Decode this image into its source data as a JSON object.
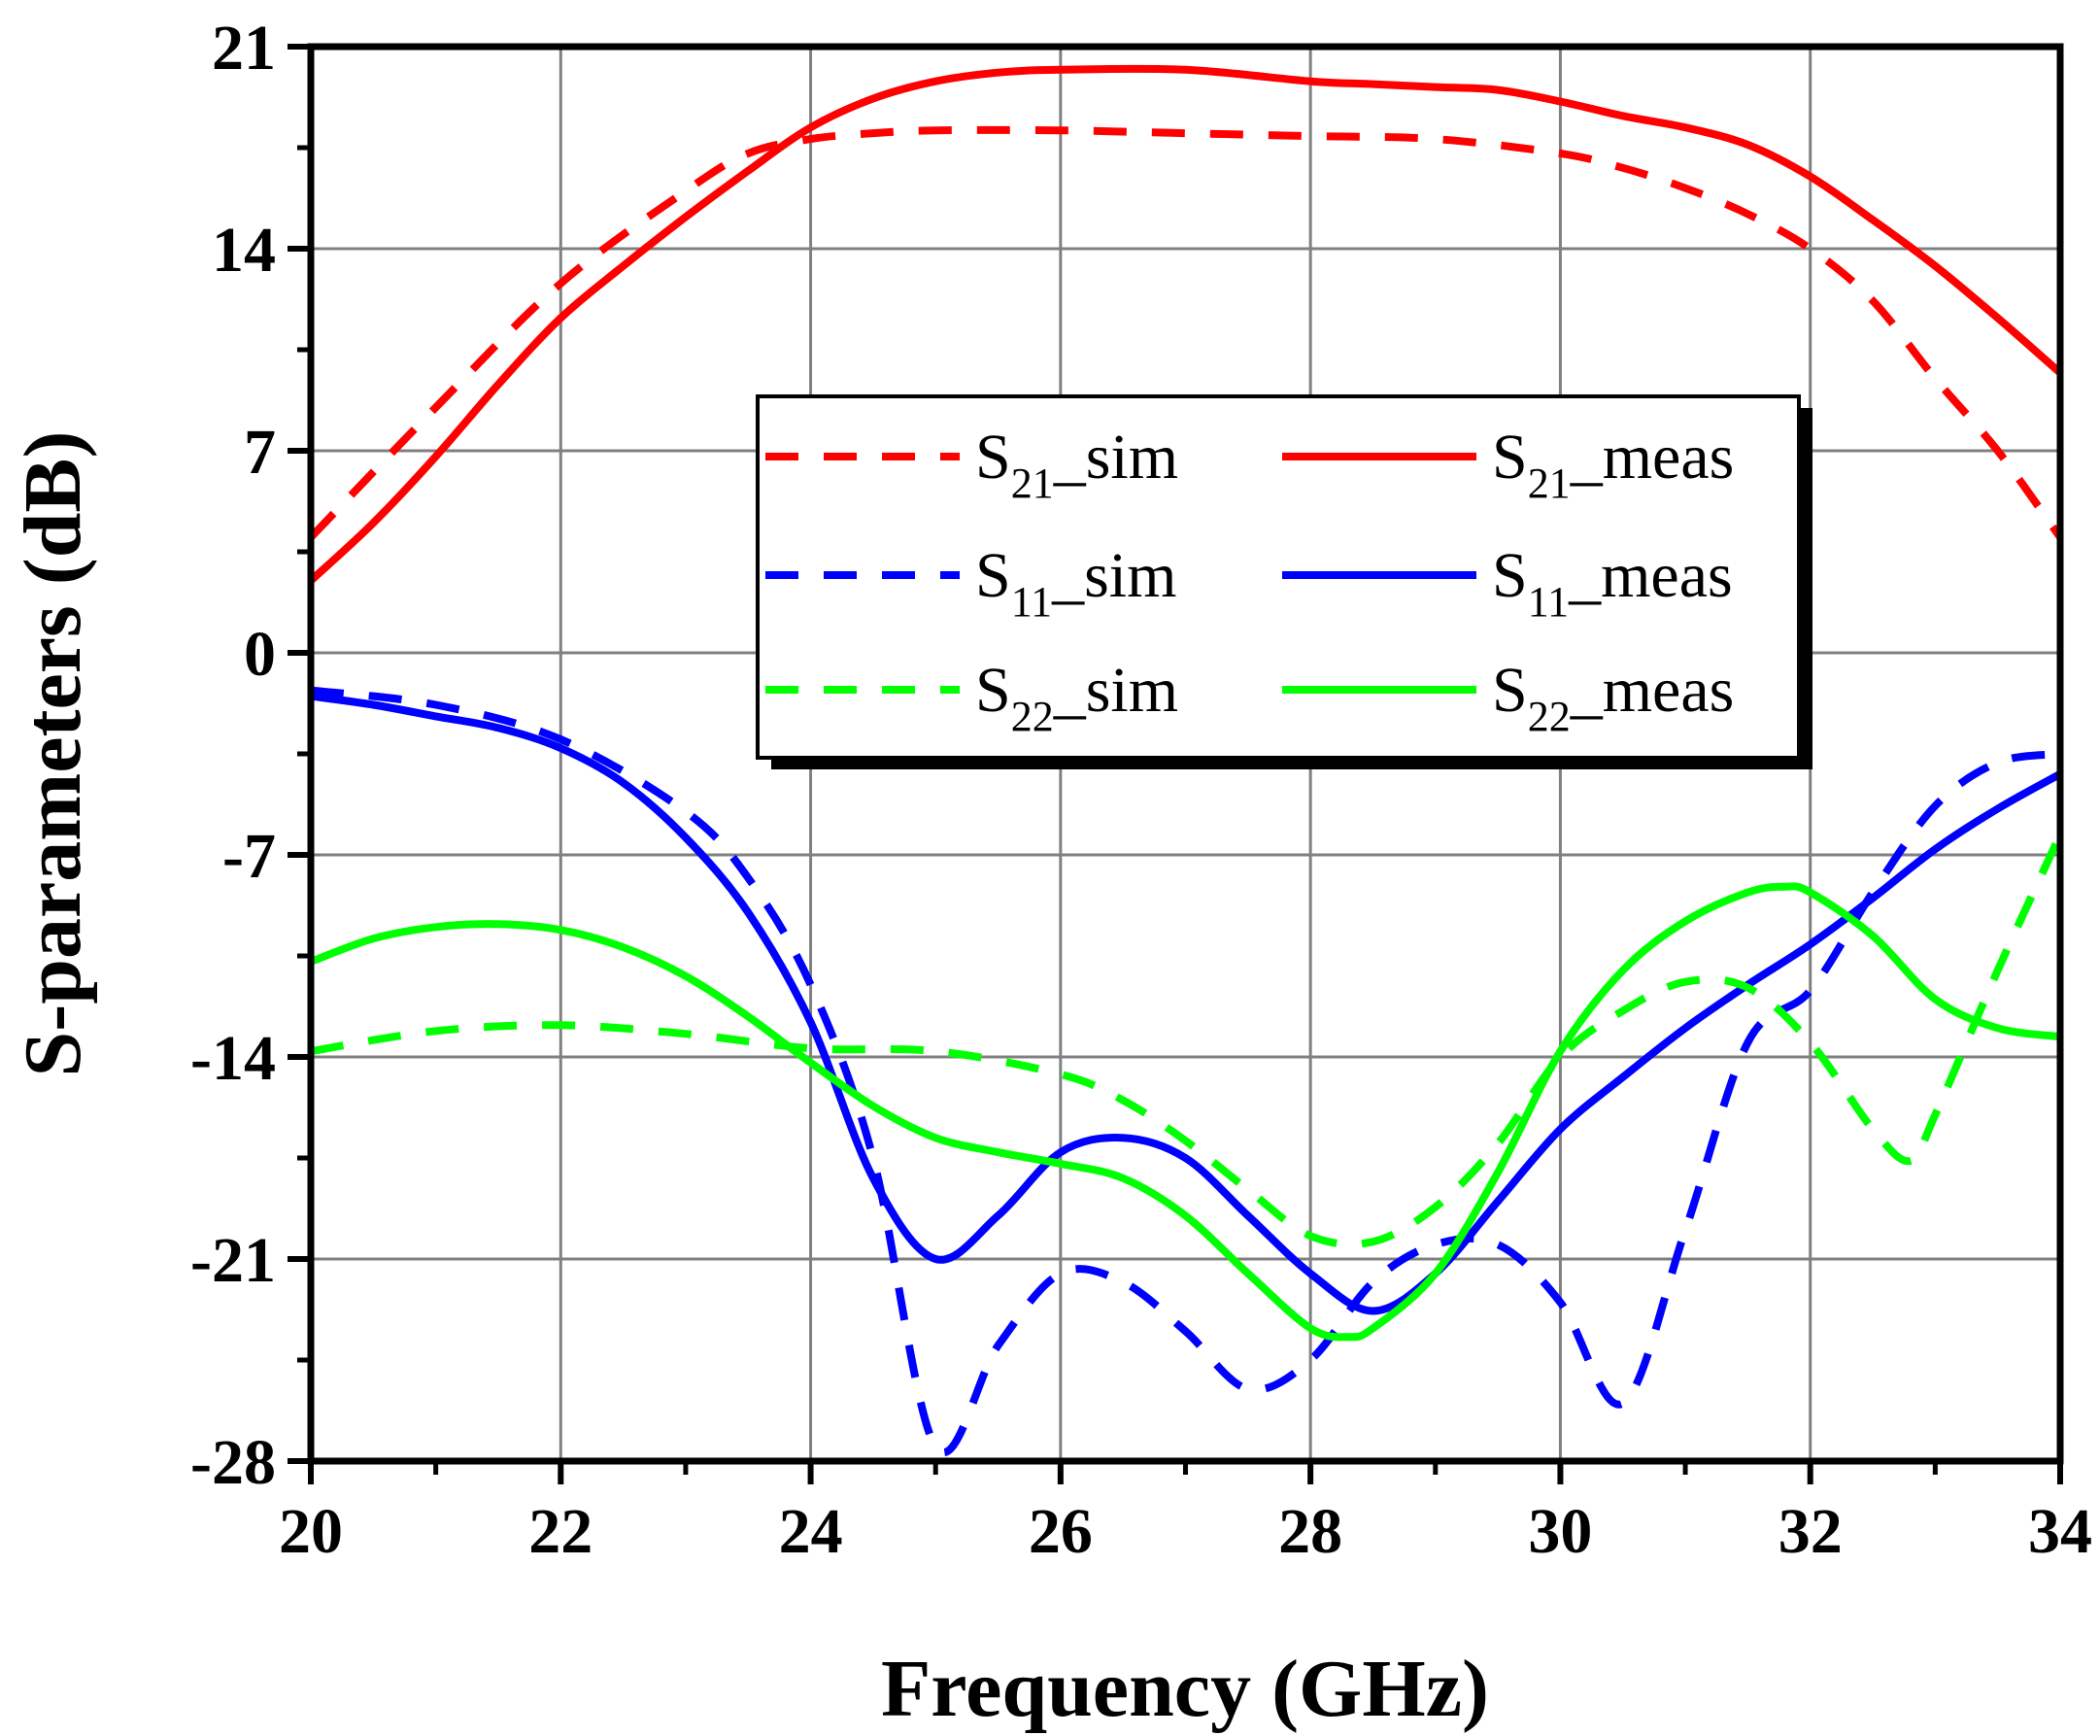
{
  "chart_data": {
    "type": "line",
    "title": "",
    "xlabel": "Frequency (GHz)",
    "ylabel": "S-parameters (dB)",
    "xlim": [
      20,
      34
    ],
    "ylim": [
      -28,
      21
    ],
    "xticks": [
      20,
      22,
      24,
      26,
      28,
      30,
      32,
      34
    ],
    "yticks": [
      -28,
      -21,
      -14,
      -7,
      0,
      7,
      14,
      21
    ],
    "xtick_labels": [
      "20",
      "22",
      "24",
      "26",
      "28",
      "30",
      "32",
      "34"
    ],
    "ytick_labels": [
      "-28",
      "-21",
      "-14",
      "-7",
      "0",
      "7",
      "14",
      "21"
    ],
    "grid": true,
    "legend_position": "center-top",
    "series": [
      {
        "name": "S21_sim",
        "label_main": "S",
        "label_sub": "21",
        "label_suffix": "_sim",
        "color": "#ff0000",
        "dash": true,
        "x": [
          20,
          21,
          22,
          23,
          23.5,
          24,
          24.5,
          25,
          26,
          27,
          28,
          29,
          30,
          30.5,
          31,
          31.5,
          32,
          32.5,
          33,
          33.5,
          34
        ],
        "y": [
          4,
          8.5,
          12.8,
          16,
          17.3,
          17.8,
          18,
          18.1,
          18.1,
          18.0,
          17.9,
          17.8,
          17.3,
          16.8,
          16.1,
          15.2,
          14,
          12.2,
          9.5,
          7,
          4
        ]
      },
      {
        "name": "S21_meas",
        "label_main": "S",
        "label_sub": "21",
        "label_suffix": "_meas",
        "color": "#ff0000",
        "dash": false,
        "x": [
          20,
          20.5,
          21,
          21.5,
          22,
          22.5,
          23,
          23.5,
          24,
          24.5,
          25,
          25.5,
          26,
          27,
          28,
          28.5,
          29,
          29.5,
          30,
          30.5,
          31,
          31.5,
          32,
          32.5,
          33,
          33.5,
          34
        ],
        "y": [
          2.5,
          4.5,
          6.8,
          9.3,
          11.6,
          13.4,
          15.1,
          16.7,
          18.2,
          19.2,
          19.8,
          20.1,
          20.2,
          20.2,
          19.8,
          19.7,
          19.6,
          19.5,
          19.1,
          18.6,
          18.2,
          17.6,
          16.5,
          15,
          13.4,
          11.6,
          9.7
        ]
      },
      {
        "name": "S11_sim",
        "label_main": "S",
        "label_sub": "11",
        "label_suffix": "_sim",
        "color": "#0000ff",
        "dash": true,
        "x": [
          20,
          21,
          22,
          23,
          23.5,
          24,
          24.5,
          25,
          25.5,
          26,
          26.5,
          27,
          27.5,
          28,
          28.5,
          29,
          29.5,
          30,
          30.5,
          31,
          31.5,
          32,
          32.5,
          33,
          33.5,
          34
        ],
        "y": [
          -1.3,
          -1.8,
          -3,
          -5.5,
          -7.8,
          -11.5,
          -17.5,
          -27.5,
          -24,
          -21.5,
          -21.8,
          -23.5,
          -25.5,
          -24.5,
          -21.8,
          -20.5,
          -20.5,
          -22.5,
          -26,
          -20,
          -13.5,
          -11.7,
          -8.3,
          -5.3,
          -3.8,
          -3.5
        ]
      },
      {
        "name": "S11_meas",
        "label_main": "S",
        "label_sub": "11",
        "label_suffix": "_meas",
        "color": "#0000ff",
        "dash": false,
        "x": [
          20,
          20.5,
          21,
          21.5,
          22,
          22.5,
          23,
          23.5,
          24,
          24.5,
          25,
          25.5,
          26,
          26.5,
          27,
          27.5,
          28,
          28.5,
          29,
          29.5,
          30,
          30.5,
          31,
          31.5,
          32,
          32.5,
          33,
          33.5,
          34
        ],
        "y": [
          -1.5,
          -1.8,
          -2.2,
          -2.6,
          -3.3,
          -4.5,
          -6.4,
          -9,
          -12.8,
          -18.2,
          -21,
          -19.5,
          -17.3,
          -16.8,
          -17.5,
          -19.5,
          -21.5,
          -22.8,
          -21.5,
          -19,
          -16.5,
          -14.7,
          -13,
          -11.5,
          -10.1,
          -8.5,
          -6.8,
          -5.4,
          -4.2
        ]
      },
      {
        "name": "S22_sim",
        "label_main": "S",
        "label_sub": "22",
        "label_suffix": "_sim",
        "color": "#00ff00",
        "dash": true,
        "x": [
          20,
          21,
          22,
          23,
          24,
          25,
          26,
          26.5,
          27,
          27.5,
          28,
          28.5,
          29,
          29.5,
          30,
          30.5,
          31,
          31.5,
          32,
          32.5,
          32.8,
          33,
          33.5,
          34
        ],
        "y": [
          -13.8,
          -13.1,
          -12.9,
          -13.2,
          -13.7,
          -13.8,
          -14.6,
          -15.5,
          -16.9,
          -18.6,
          -20.2,
          -20.4,
          -19.2,
          -17,
          -14,
          -12.4,
          -11.4,
          -11.6,
          -13.5,
          -16.5,
          -17.6,
          -16,
          -11,
          -6.3
        ]
      },
      {
        "name": "S22_meas",
        "label_main": "S",
        "label_sub": "22",
        "label_suffix": "_meas",
        "color": "#00ff00",
        "dash": false,
        "x": [
          20,
          20.5,
          21,
          21.5,
          22,
          22.5,
          23,
          23.5,
          24,
          24.5,
          25,
          25.5,
          26,
          26.5,
          27,
          27.5,
          28,
          28.3,
          28.5,
          29,
          29.5,
          30,
          30.5,
          31,
          31.5,
          31.8,
          32,
          32.5,
          33,
          33.5,
          34
        ],
        "y": [
          -10.7,
          -9.9,
          -9.5,
          -9.4,
          -9.6,
          -10.2,
          -11.2,
          -12.6,
          -14.2,
          -15.7,
          -16.8,
          -17.3,
          -17.7,
          -18.2,
          -19.5,
          -21.5,
          -23.4,
          -23.7,
          -23.4,
          -21.5,
          -18,
          -13.8,
          -11,
          -9.3,
          -8.3,
          -8.1,
          -8.3,
          -9.8,
          -12,
          -13,
          -13.3
        ]
      }
    ]
  }
}
